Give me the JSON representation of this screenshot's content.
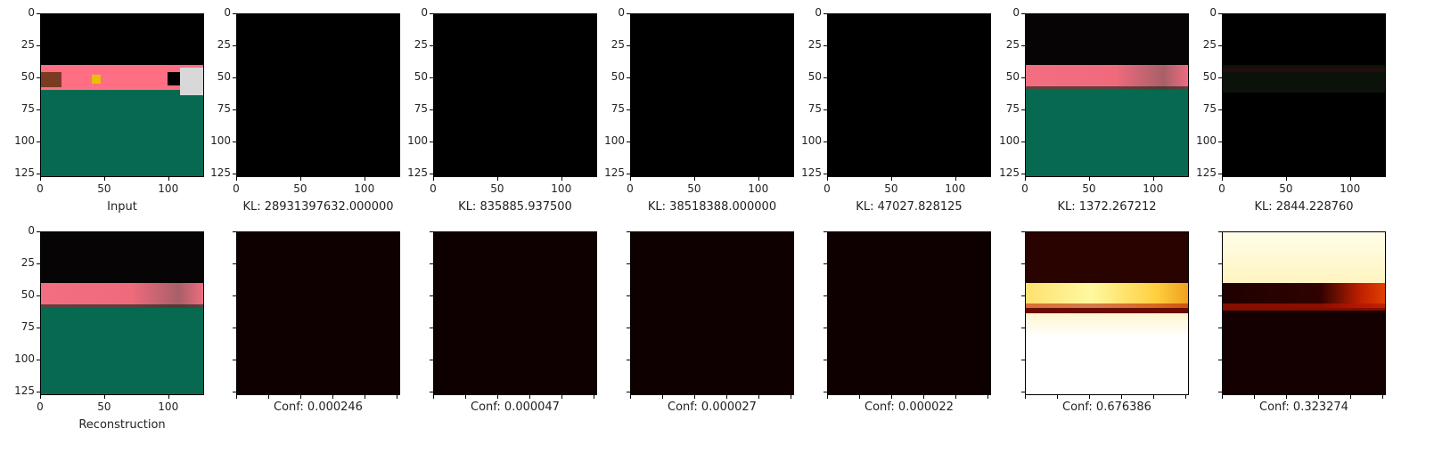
{
  "chart_data": {
    "type": "image-grid",
    "rows": 2,
    "cols": 7,
    "axis_range": [
      0,
      128
    ],
    "x_ticks": [
      "0",
      "50",
      "100"
    ],
    "y_ticks": [
      "0",
      "25",
      "50",
      "75",
      "100",
      "125"
    ],
    "top_row": [
      {
        "label": "Input",
        "kind": "input"
      },
      {
        "label": "KL: 28931397632.000000",
        "kind": "black"
      },
      {
        "label": "KL: 835885.937500",
        "kind": "black"
      },
      {
        "label": "KL: 38518388.000000",
        "kind": "black"
      },
      {
        "label": "KL: 47027.828125",
        "kind": "black"
      },
      {
        "label": "KL: 1372.267212",
        "kind": "scene"
      },
      {
        "label": "KL: 2844.228760",
        "kind": "faint"
      }
    ],
    "bottom_row": [
      {
        "label": "Reconstruction",
        "kind": "scene",
        "confidence": null
      },
      {
        "label": "Conf: 0.000246",
        "kind": "heat-dark",
        "confidence": 0.000246
      },
      {
        "label": "Conf: 0.000047",
        "kind": "heat-dark",
        "confidence": 4.7e-05
      },
      {
        "label": "Conf: 0.000027",
        "kind": "heat-dark",
        "confidence": 2.7e-05
      },
      {
        "label": "Conf: 0.000022",
        "kind": "heat-dark",
        "confidence": 2.2e-05
      },
      {
        "label": "Conf: 0.676386",
        "kind": "heat-bright-bottom",
        "confidence": 0.676386
      },
      {
        "label": "Conf: 0.323274",
        "kind": "heat-bright-top",
        "confidence": 0.323274
      }
    ],
    "colors": {
      "black": "#000000",
      "wall": "#ff6e82",
      "floor": "#076a50",
      "heat_dark": "#0f0000",
      "heat_red": "#b41400",
      "heat_yellow": "#ffe650",
      "heat_white": "#fffff0"
    }
  }
}
